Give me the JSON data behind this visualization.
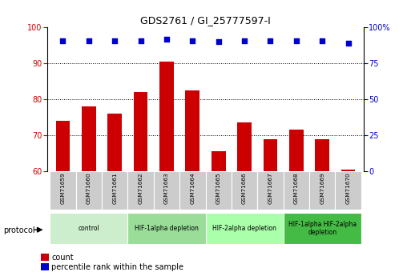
{
  "title": "GDS2761 / GI_25777597-I",
  "samples": [
    "GSM71659",
    "GSM71660",
    "GSM71661",
    "GSM71662",
    "GSM71663",
    "GSM71664",
    "GSM71665",
    "GSM71666",
    "GSM71667",
    "GSM71668",
    "GSM71669",
    "GSM71670"
  ],
  "count_values": [
    74.0,
    78.0,
    76.0,
    82.0,
    90.5,
    82.5,
    65.5,
    73.5,
    69.0,
    71.5,
    69.0,
    60.5
  ],
  "percentile_values": [
    91,
    91,
    91,
    91,
    92,
    91,
    90,
    91,
    91,
    91,
    91,
    89
  ],
  "left_ylim": [
    60,
    100
  ],
  "left_yticks": [
    60,
    70,
    80,
    90,
    100
  ],
  "right_ytick_vals": [
    0,
    25,
    50,
    75,
    100
  ],
  "right_yticklabels": [
    "0",
    "25",
    "50",
    "75",
    "100%"
  ],
  "bar_color": "#cc0000",
  "dot_color": "#0000cc",
  "protocol_groups": [
    {
      "label": "control",
      "start": 0,
      "end": 3,
      "color": "#cceecc"
    },
    {
      "label": "HIF-1alpha depletion",
      "start": 3,
      "end": 6,
      "color": "#99dd99"
    },
    {
      "label": "HIF-2alpha depletion",
      "start": 6,
      "end": 9,
      "color": "#aaffaa"
    },
    {
      "label": "HIF-1alpha HIF-2alpha\ndepletion",
      "start": 9,
      "end": 12,
      "color": "#44bb44"
    }
  ],
  "protocol_label": "protocol",
  "legend_count": "count",
  "legend_pct": "percentile rank within the sample"
}
